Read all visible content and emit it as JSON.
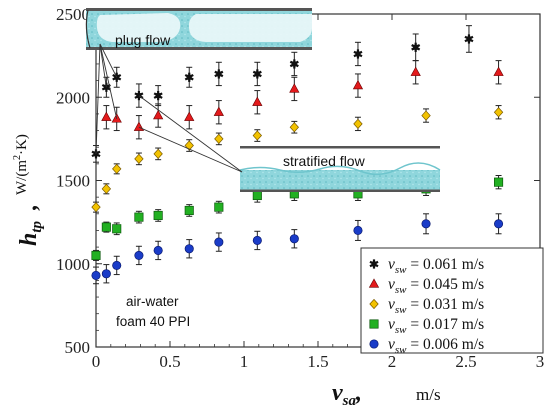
{
  "chart_data": {
    "type": "scatter",
    "xlabel": {
      "symbol": "v",
      "sub": "sa",
      "unit": "m/s"
    },
    "ylabel": {
      "symbol": "h",
      "sub": "tp",
      "unit_main": "W/(m",
      "unit_sup": "2",
      "unit_tail": "·K)"
    },
    "xlim": [
      0,
      3
    ],
    "ylim": [
      500,
      2500
    ],
    "xticks": [
      0,
      0.5,
      1,
      1.5,
      2,
      2.5,
      3
    ],
    "xtick_labels": [
      "0",
      "0.5",
      "1",
      "1.5",
      "2",
      "2.5",
      "3"
    ],
    "yticks": [
      500,
      1000,
      1500,
      2000,
      2500
    ],
    "ytick_labels": [
      "500",
      "1000",
      "1500",
      "2000",
      "2500"
    ],
    "legend_position": "bottom-right",
    "annotations": {
      "plug_flow": "plug flow",
      "stratified_flow": "stratified flow",
      "conditions_line1": "air-water",
      "conditions_line2": "foam 40 PPI"
    },
    "series": [
      {
        "name_var": "v",
        "name_sub": "sw",
        "name_val": " = 0.061 m/s",
        "marker": "star",
        "color": "#111111",
        "x": [
          0,
          0.07,
          0.14,
          0.29,
          0.42,
          0.63,
          0.83,
          1.09,
          1.34,
          1.77,
          2.16,
          2.52
        ],
        "y": [
          1660,
          2060,
          2120,
          2010,
          2010,
          2120,
          2140,
          2140,
          2200,
          2260,
          2300,
          2350
        ],
        "err": [
          50,
          60,
          60,
          70,
          60,
          60,
          70,
          70,
          70,
          70,
          80,
          80
        ]
      },
      {
        "name_var": "v",
        "name_sub": "sw",
        "name_val": " = 0.045 m/s",
        "marker": "triangle",
        "color": "#e31a1c",
        "x": [
          0.07,
          0.14,
          0.29,
          0.42,
          0.63,
          0.83,
          1.09,
          1.34,
          1.77,
          2.16,
          2.72
        ],
        "y": [
          1880,
          1870,
          1820,
          1890,
          1880,
          1910,
          1970,
          2050,
          2070,
          2150,
          2150
        ],
        "err": [
          70,
          70,
          70,
          70,
          70,
          70,
          70,
          70,
          70,
          70,
          70
        ]
      },
      {
        "name_var": "v",
        "name_sub": "sw",
        "name_val": " = 0.031 m/s",
        "marker": "diamond",
        "color": "#f2c200",
        "x": [
          0,
          0.07,
          0.14,
          0.29,
          0.42,
          0.63,
          0.83,
          1.09,
          1.34,
          1.77,
          2.23,
          2.72
        ],
        "y": [
          1340,
          1450,
          1570,
          1630,
          1660,
          1710,
          1750,
          1770,
          1820,
          1840,
          1890,
          1910
        ],
        "err": [
          30,
          30,
          30,
          35,
          35,
          35,
          35,
          35,
          35,
          40,
          40,
          40
        ]
      },
      {
        "name_var": "v",
        "name_sub": "sw",
        "name_val": " = 0.017 m/s",
        "marker": "square",
        "color": "#22b022",
        "x": [
          0,
          0.07,
          0.14,
          0.29,
          0.42,
          0.63,
          0.83,
          1.09,
          1.34,
          1.77,
          2.23,
          2.72
        ],
        "y": [
          1050,
          1220,
          1210,
          1280,
          1290,
          1320,
          1340,
          1410,
          1420,
          1420,
          1450,
          1490
        ],
        "err": [
          30,
          30,
          35,
          35,
          35,
          35,
          35,
          40,
          40,
          40,
          40,
          40
        ]
      },
      {
        "name_var": "v",
        "name_sub": "sw",
        "name_val": " = 0.006 m/s",
        "marker": "circle",
        "color": "#1a3cc8",
        "x": [
          0,
          0.07,
          0.14,
          0.29,
          0.42,
          0.63,
          0.83,
          1.09,
          1.34,
          1.77,
          2.23,
          2.72
        ],
        "y": [
          930,
          940,
          990,
          1050,
          1080,
          1090,
          1130,
          1140,
          1150,
          1200,
          1240,
          1240
        ],
        "err": [
          50,
          55,
          55,
          55,
          55,
          55,
          55,
          55,
          55,
          60,
          60,
          60
        ]
      }
    ]
  }
}
